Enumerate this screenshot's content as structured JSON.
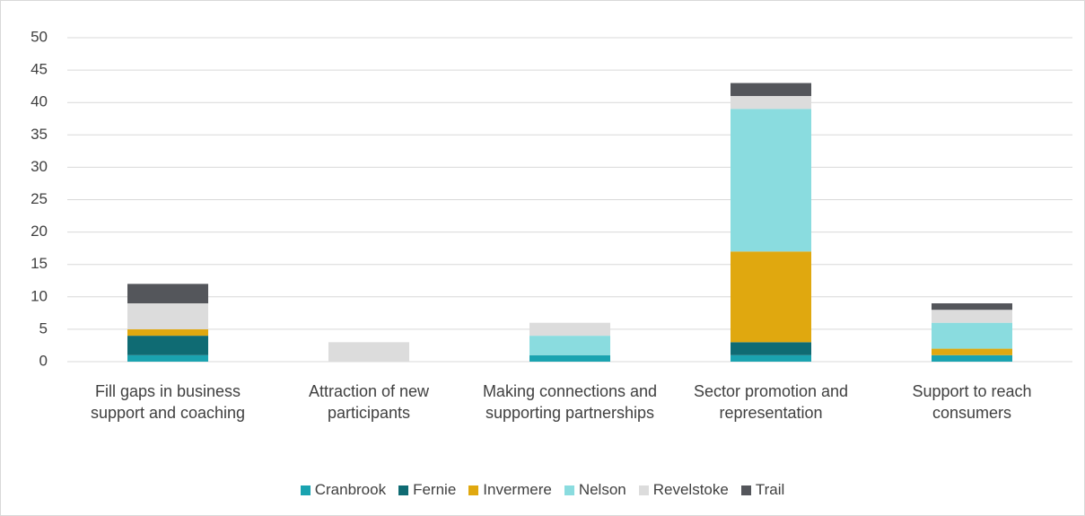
{
  "chart_data": {
    "type": "stacked_bar",
    "categories": [
      "Fill gaps in business support and coaching",
      "Attraction of new participants",
      "Making connections and supporting partnerships",
      "Sector promotion and representation",
      "Support to reach consumers"
    ],
    "series": [
      {
        "name": "Cranbrook",
        "color": "#1aa3b0",
        "values": [
          1,
          0,
          1,
          1,
          1
        ]
      },
      {
        "name": "Fernie",
        "color": "#0f6b73",
        "values": [
          3,
          0,
          0,
          2,
          0
        ]
      },
      {
        "name": "Invermere",
        "color": "#e0a80f",
        "values": [
          1,
          0,
          0,
          14,
          1
        ]
      },
      {
        "name": "Nelson",
        "color": "#8adcdf",
        "values": [
          0,
          0,
          3,
          22,
          4
        ]
      },
      {
        "name": "Revelstoke",
        "color": "#dcdcdc",
        "values": [
          4,
          3,
          2,
          2,
          2
        ]
      },
      {
        "name": "Trail",
        "color": "#54565b",
        "values": [
          3,
          0,
          0,
          2,
          1
        ]
      }
    ],
    "ylim": [
      0,
      50
    ],
    "yticks": [
      0,
      5,
      10,
      15,
      20,
      25,
      30,
      35,
      40,
      45,
      50
    ],
    "grid": true,
    "legend": "bottom"
  }
}
